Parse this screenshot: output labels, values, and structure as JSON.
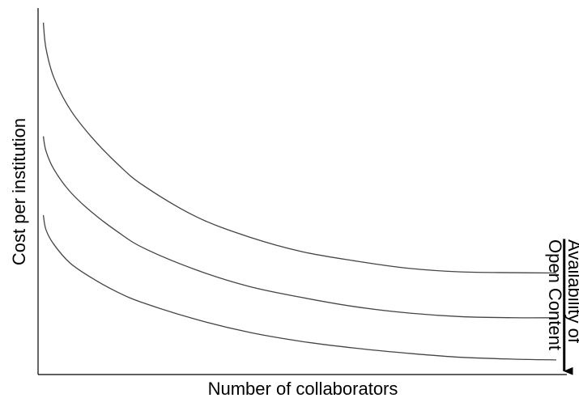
{
  "chart_data": {
    "type": "line",
    "title": "",
    "xlabel": "Number of collaborators",
    "ylabel": "Cost per institution",
    "xlim": [
      0,
      10
    ],
    "ylim": [
      0,
      10
    ],
    "grid": false,
    "ticks_shown": false,
    "legend": "none",
    "colors": {
      "axis": "#000000",
      "curve": "#444444",
      "arrow": "#000000"
    },
    "series": [
      {
        "x": [
          0.1,
          0.15,
          0.3,
          0.6,
          1.0,
          1.5,
          2.0,
          3.0,
          4.0,
          5.0,
          6.0,
          7.0,
          8.0,
          9.0,
          9.8
        ],
        "values": [
          9.6,
          8.9,
          8.1,
          7.25,
          6.5,
          5.75,
          5.15,
          4.3,
          3.75,
          3.35,
          3.1,
          2.9,
          2.8,
          2.78,
          2.77
        ]
      },
      {
        "x": [
          0.1,
          0.15,
          0.3,
          0.6,
          1.0,
          1.5,
          2.0,
          3.0,
          4.0,
          5.0,
          6.0,
          7.0,
          8.0,
          9.0,
          9.8
        ],
        "values": [
          6.5,
          6.1,
          5.6,
          5.0,
          4.45,
          3.9,
          3.45,
          2.85,
          2.4,
          2.1,
          1.85,
          1.68,
          1.58,
          1.55,
          1.55
        ]
      },
      {
        "x": [
          0.1,
          0.15,
          0.3,
          0.6,
          1.0,
          1.5,
          2.0,
          3.0,
          4.0,
          5.0,
          6.0,
          7.0,
          8.0,
          9.0,
          9.8
        ],
        "values": [
          4.35,
          3.95,
          3.55,
          3.05,
          2.65,
          2.25,
          1.95,
          1.5,
          1.15,
          0.9,
          0.72,
          0.58,
          0.47,
          0.42,
          0.4
        ]
      }
    ],
    "annotation": {
      "text_lines": [
        "Availability of",
        "Open Content"
      ],
      "arrow": "down",
      "x": 9.95,
      "y_start": 3.7,
      "y_end": 0.05
    }
  }
}
